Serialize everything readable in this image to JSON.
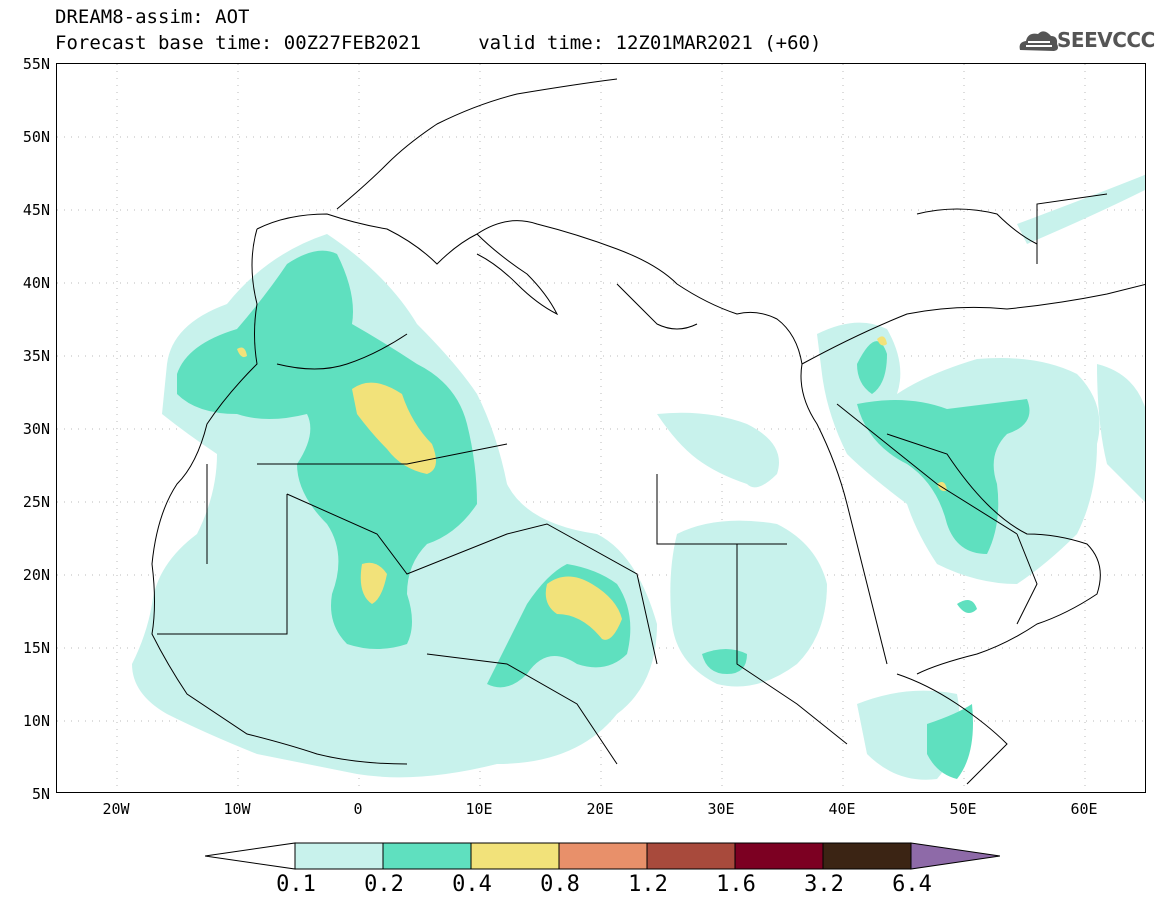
{
  "header": {
    "line1": "DREAM8-assim: AOT",
    "line2": "Forecast base time: 00Z27FEB2021     valid time: 12Z01MAR2021 (+60)"
  },
  "logo": {
    "text": "SEEVCCC",
    "icon": "cloud-icon"
  },
  "map": {
    "lon_range": [
      -25,
      65
    ],
    "lat_range": [
      5,
      55
    ],
    "lat_labels": [
      "55N",
      "50N",
      "45N",
      "40N",
      "35N",
      "30N",
      "25N",
      "20N",
      "15N",
      "10N",
      "5N"
    ],
    "lon_labels": [
      "20W",
      "10W",
      "0",
      "10E",
      "20E",
      "30E",
      "40E",
      "50E",
      "60E"
    ],
    "grid": "dotted"
  },
  "legend": {
    "levels": [
      "0.1",
      "0.2",
      "0.4",
      "0.8",
      "1.2",
      "1.6",
      "3.2",
      "6.4"
    ],
    "colors": {
      "lt01": "#ffffff",
      "b1": "#c8f2ec",
      "b2": "#5fe0bf",
      "b3": "#f2e27a",
      "b4": "#e8906a",
      "b5": "#a84a3c",
      "b6": "#7c0022",
      "b7": "#3b2414",
      "gt64": "#8e6aa8"
    }
  }
}
